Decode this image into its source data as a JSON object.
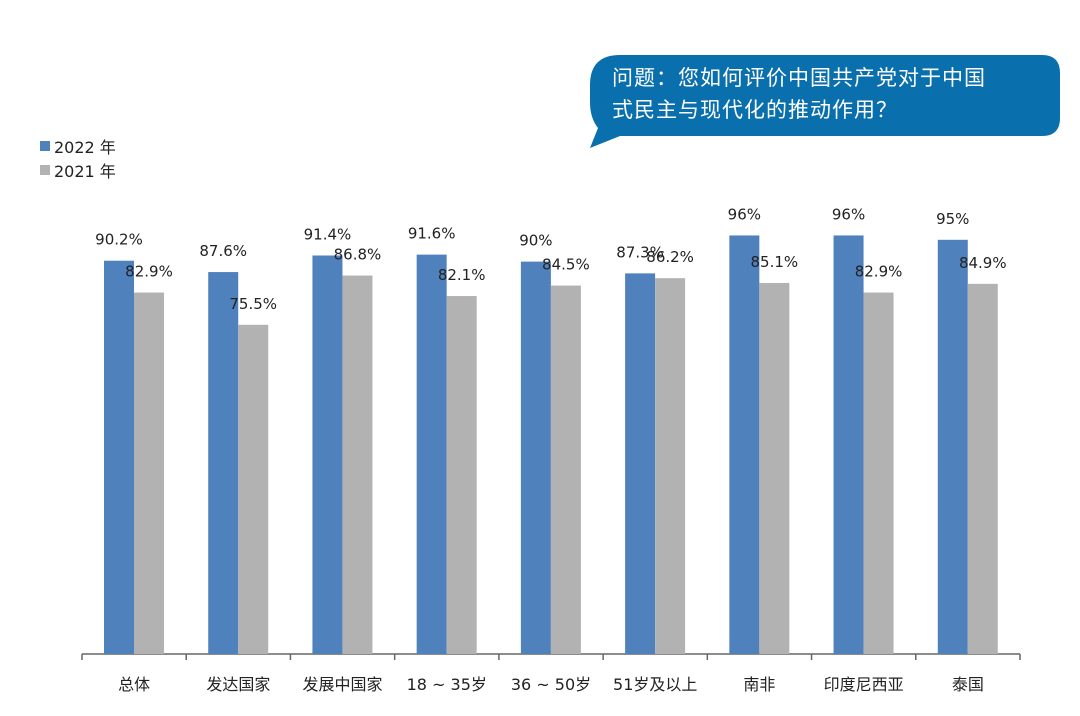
{
  "question": {
    "line1": "问题：您如何评价中国共产党对于中国",
    "line2": "式民主与现代化的推动作用？"
  },
  "colors": {
    "bubble": "#0a6fad",
    "series_2022": "#4f81bd",
    "series_2021": "#b2b2b2",
    "axis": "#666666",
    "text": "#222222"
  },
  "chart_data": {
    "type": "bar",
    "categories": [
      "总体",
      "发达国家",
      "发展中国家",
      "18 ~ 35岁",
      "36 ~ 50岁",
      "51岁及以上",
      "南非",
      "印度尼西亚",
      "泰国"
    ],
    "series": [
      {
        "name": "2022 年",
        "values": [
          90.2,
          87.6,
          91.4,
          91.6,
          90,
          87.3,
          96,
          96,
          95
        ],
        "labels": [
          "90.2%",
          "87.6%",
          "91.4%",
          "91.6%",
          "90%",
          "87.3%",
          "96%",
          "96%",
          "95%"
        ]
      },
      {
        "name": "2021 年",
        "values": [
          82.9,
          75.5,
          86.8,
          82.1,
          84.5,
          86.2,
          85.1,
          82.9,
          84.9
        ],
        "labels": [
          "82.9%",
          "75.5%",
          "86.8%",
          "82.1%",
          "84.5%",
          "86.2%",
          "85.1%",
          "82.9%",
          "84.9%"
        ]
      }
    ],
    "ylim": [
      0,
      100
    ],
    "grid": false,
    "legend_position": "top-left"
  }
}
